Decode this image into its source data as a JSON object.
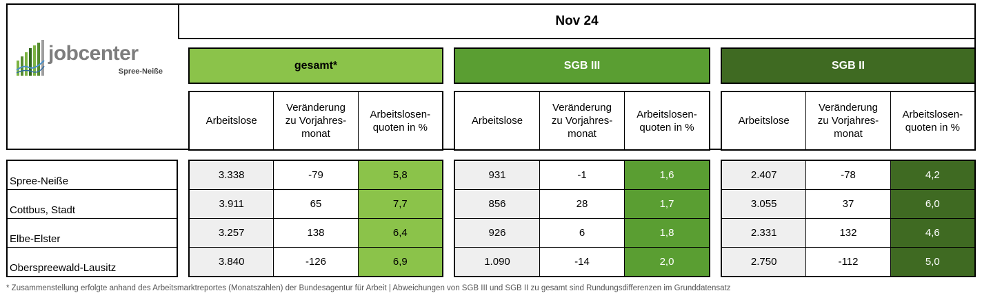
{
  "month": "Nov 24",
  "logo": {
    "name": "jobcenter",
    "subtitle": "Spree-Neiße"
  },
  "groups": [
    {
      "key": "gesamt",
      "label": "gesamt*",
      "color": "#8bc34a"
    },
    {
      "key": "sgb3",
      "label": "SGB III",
      "color": "#5a9e32"
    },
    {
      "key": "sgb2",
      "label": "SGB II",
      "color": "#3f6a22"
    }
  ],
  "column_headers": [
    "Arbeitslose",
    "Veränderung\nzu Vorjahres-\nmonat",
    "Arbeitslosen-\nquoten in %"
  ],
  "regions": [
    "Spree-Neiße",
    "Cottbus, Stadt",
    "Elbe-Elster",
    "Oberspreewald-Lausitz"
  ],
  "data": {
    "gesamt": [
      [
        "3.338",
        "-79",
        "5,8"
      ],
      [
        "3.911",
        "65",
        "7,7"
      ],
      [
        "3.257",
        "138",
        "6,4"
      ],
      [
        "3.840",
        "-126",
        "6,9"
      ]
    ],
    "sgb3": [
      [
        "931",
        "-1",
        "1,6"
      ],
      [
        "856",
        "28",
        "1,7"
      ],
      [
        "926",
        "6",
        "1,8"
      ],
      [
        "1.090",
        "-14",
        "2,0"
      ]
    ],
    "sgb2": [
      [
        "2.407",
        "-78",
        "4,2"
      ],
      [
        "3.055",
        "37",
        "6,0"
      ],
      [
        "2.331",
        "132",
        "4,6"
      ],
      [
        "2.750",
        "-112",
        "5,0"
      ]
    ]
  },
  "footnote": "* Zusammenstellung erfolgte anhand des Arbeitsmarktreportes (Monatszahlen) der Bundesagentur für Arbeit | Abweichungen von SGB III und SGB II zu gesamt sind Rundungsdifferenzen im Grunddatensatz"
}
